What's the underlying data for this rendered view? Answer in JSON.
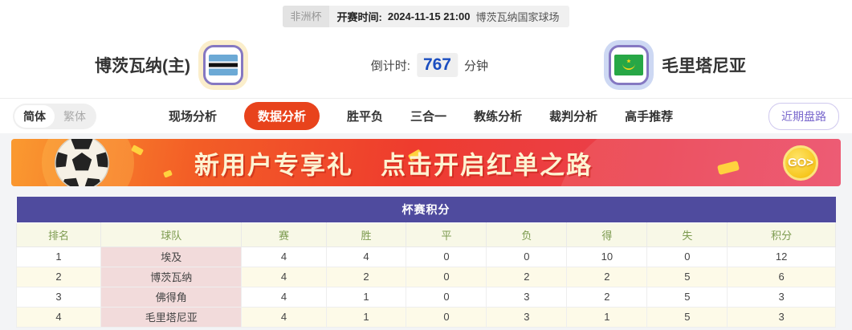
{
  "match_info": {
    "league": "非洲杯",
    "kickoff_label": "开赛时间:",
    "kickoff_time": "2024-11-15 21:00",
    "venue": "博茨瓦纳国家球场"
  },
  "teams": {
    "home": {
      "name": "博茨瓦纳(主)",
      "flag": "botswana-flag"
    },
    "away": {
      "name": "毛里塔尼亚",
      "flag": "mauritania-flag"
    }
  },
  "countdown": {
    "label": "倒计时:",
    "value": "767",
    "unit": "分钟"
  },
  "lang_toggle": {
    "simplified": "简体",
    "traditional": "繁体"
  },
  "nav": {
    "tabs": [
      {
        "label": "现场分析",
        "active": false
      },
      {
        "label": "数据分析",
        "active": true
      },
      {
        "label": "胜平负",
        "active": false
      },
      {
        "label": "三合一",
        "active": false
      },
      {
        "label": "教练分析",
        "active": false
      },
      {
        "label": "裁判分析",
        "active": false
      },
      {
        "label": "高手推荐",
        "active": false
      }
    ],
    "recent_trends_button": "近期盘路"
  },
  "banner": {
    "text_left": "新用户专享礼",
    "text_right": "点击开启红单之路",
    "go_label": "GO>"
  },
  "table": {
    "title": "杯赛积分",
    "headers": [
      "排名",
      "球队",
      "赛",
      "胜",
      "平",
      "负",
      "得",
      "失",
      "积分"
    ],
    "rows": [
      [
        "1",
        "埃及",
        "4",
        "4",
        "0",
        "0",
        "10",
        "0",
        "12"
      ],
      [
        "2",
        "博茨瓦纳",
        "4",
        "2",
        "0",
        "2",
        "2",
        "5",
        "6"
      ],
      [
        "3",
        "佛得角",
        "4",
        "1",
        "0",
        "3",
        "2",
        "5",
        "3"
      ],
      [
        "4",
        "毛里塔尼亚",
        "4",
        "1",
        "0",
        "3",
        "1",
        "5",
        "3"
      ]
    ]
  },
  "colors": {
    "active_tab": "#e8431c",
    "table_title_bg": "#4f4b9e",
    "countdown_value": "#1b4ec0"
  }
}
